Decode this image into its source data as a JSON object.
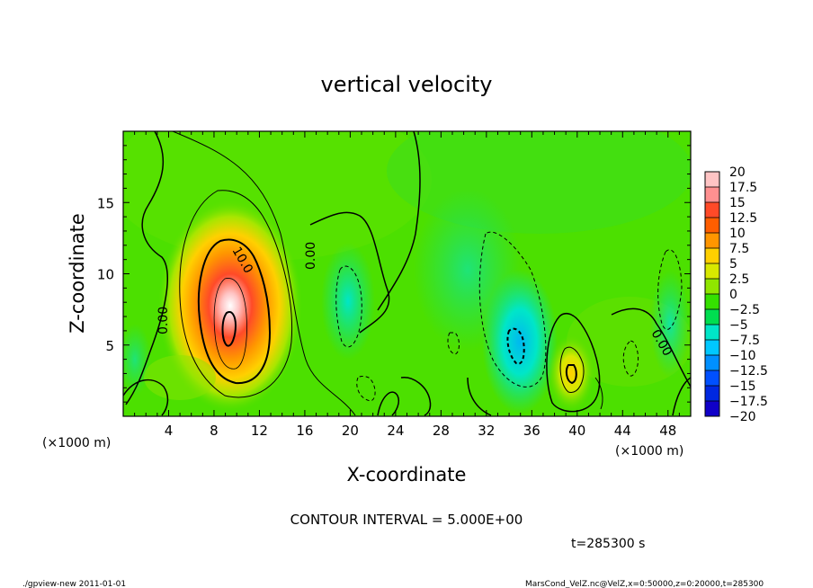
{
  "chart_data": {
    "type": "heatmap",
    "title": "vertical velocity",
    "xlabel": "X-coordinate",
    "ylabel": "Z-coordinate",
    "x_unit_left": "(×1000 m)",
    "x_unit_right": "(×1000 m)",
    "xlim": [
      0,
      50
    ],
    "ylim": [
      0,
      20
    ],
    "x_ticks": [
      "4",
      "8",
      "12",
      "16",
      "20",
      "24",
      "28",
      "32",
      "36",
      "40",
      "44",
      "48"
    ],
    "y_ticks": [
      "5",
      "10",
      "15"
    ],
    "contour_interval_text": "CONTOUR INTERVAL = 5.000E+00",
    "time_text": "t=285300 s",
    "contour_labels": [
      "0.00",
      "10.0",
      "0.00",
      "0.00"
    ],
    "colorbar": {
      "labels": [
        "20",
        "17.5",
        "15",
        "12.5",
        "10",
        "7.5",
        "5",
        "2.5",
        "0",
        "−2.5",
        "−5",
        "−7.5",
        "−10",
        "−12.5",
        "−15",
        "−17.5",
        "−20"
      ],
      "colors": [
        "#ffc4c4",
        "#ff9090",
        "#ff4a28",
        "#ff5e00",
        "#ff9600",
        "#ffd000",
        "#d8e800",
        "#90e600",
        "#35e000",
        "#00de50",
        "#00e6c8",
        "#00c8ff",
        "#0090ff",
        "#0050ff",
        "#0028e0",
        "#1000c8",
        "#6000c0"
      ]
    },
    "grid": false,
    "legend": "right",
    "features": [
      {
        "kind": "updraft",
        "x": 9.3,
        "z": 7,
        "peak": 20
      },
      {
        "kind": "updraft",
        "x": 39.5,
        "z": 3.2,
        "peak": 8
      },
      {
        "kind": "downdraft",
        "x": 34.5,
        "z": 5,
        "peak": -7
      },
      {
        "kind": "downdraft",
        "x": 19.8,
        "z": 8.5,
        "peak": -4
      }
    ]
  },
  "footer": {
    "left": "./gpview-new  2011-01-01",
    "right": "MarsCond_VelZ.nc@VelZ,x=0:50000,z=0:20000,t=285300"
  }
}
